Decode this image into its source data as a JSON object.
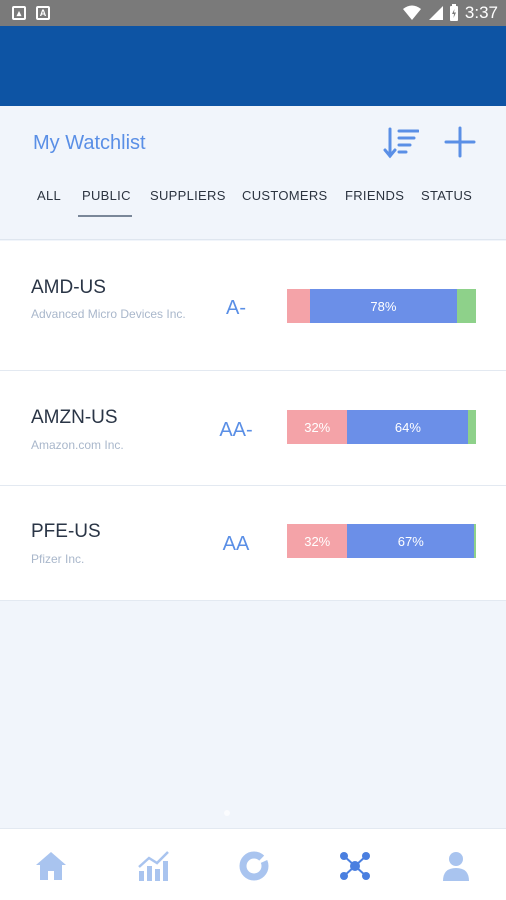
{
  "status_bar": {
    "time": "3:37"
  },
  "header": {
    "title": "My Watchlist",
    "tabs": [
      {
        "label": "ALL"
      },
      {
        "label": "PUBLIC",
        "active": true
      },
      {
        "label": "SUPPLIERS"
      },
      {
        "label": "CUSTOMERS"
      },
      {
        "label": "FRIENDS"
      },
      {
        "label": "STATUS"
      }
    ]
  },
  "watchlist": [
    {
      "ticker": "AMD-US",
      "company": "Advanced Micro Devices Inc.",
      "rating": "A-",
      "distribution": {
        "red": 12,
        "blue": 78,
        "green": 10
      },
      "labels": {
        "red": "",
        "blue": "78%",
        "green": ""
      }
    },
    {
      "ticker": "AMZN-US",
      "company": "Amazon.com Inc.",
      "rating": "AA-",
      "distribution": {
        "red": 32,
        "blue": 64,
        "green": 4
      },
      "labels": {
        "red": "32%",
        "blue": "64%",
        "green": ""
      }
    },
    {
      "ticker": "PFE-US",
      "company": "Pfizer Inc.",
      "rating": "AA",
      "distribution": {
        "red": 32,
        "blue": 67,
        "green": 1
      },
      "labels": {
        "red": "32%",
        "blue": "67%",
        "green": ""
      }
    }
  ],
  "bottom_nav": [
    {
      "icon": "home-icon"
    },
    {
      "icon": "bar-chart-icon"
    },
    {
      "icon": "donut-chart-icon"
    },
    {
      "icon": "network-icon"
    },
    {
      "icon": "user-icon"
    }
  ],
  "colors": {
    "app_bar": "#0d54a4",
    "accent": "#5a8fe6",
    "bar_red": "#f4a3a8",
    "bar_blue": "#6b8fe8",
    "bar_green": "#8ed18a"
  }
}
